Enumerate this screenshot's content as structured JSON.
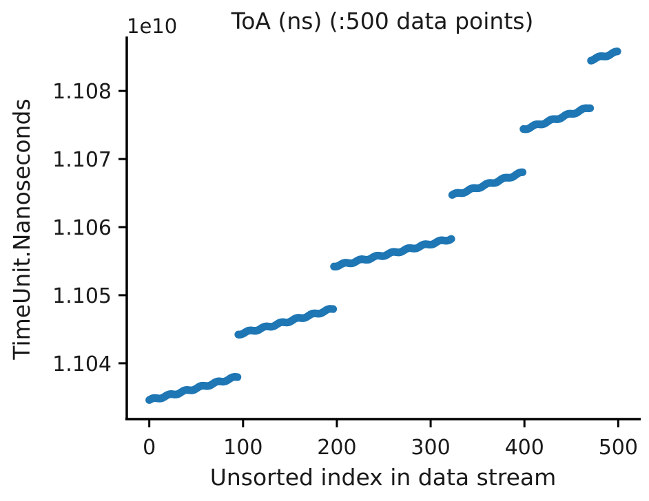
{
  "chart_data": {
    "type": "scatter",
    "title": "ToA (ns) (:500 data points)",
    "xlabel": "Unsorted index in data stream",
    "ylabel": "TimeUnit.Nanoseconds",
    "y_offset_label": "1e10",
    "xlim": [
      -24,
      524
    ],
    "ylim": [
      1.10318,
      1.1088
    ],
    "x_ticks": [
      0,
      100,
      200,
      300,
      400,
      500
    ],
    "x_tick_labels": [
      "0",
      "100",
      "200",
      "300",
      "400",
      "500"
    ],
    "y_ticks": [
      1.104,
      1.105,
      1.106,
      1.107,
      1.108
    ],
    "y_tick_labels": [
      "1.104",
      "1.105",
      "1.106",
      "1.107",
      "1.108"
    ],
    "grid": false,
    "legend": "none",
    "color": "#1f77b4",
    "segments": [
      {
        "x_start": 0,
        "x_end": 94,
        "y_start": 1.10346,
        "y_end": 1.1038
      },
      {
        "x_start": 95,
        "x_end": 196,
        "y_start": 1.10443,
        "y_end": 1.1048
      },
      {
        "x_start": 197,
        "x_end": 322,
        "y_start": 1.10543,
        "y_end": 1.10583
      },
      {
        "x_start": 323,
        "x_end": 398,
        "y_start": 1.10647,
        "y_end": 1.1068
      },
      {
        "x_start": 399,
        "x_end": 470,
        "y_start": 1.10744,
        "y_end": 1.10776
      },
      {
        "x_start": 471,
        "x_end": 499,
        "y_start": 1.10846,
        "y_end": 1.10857
      }
    ]
  }
}
